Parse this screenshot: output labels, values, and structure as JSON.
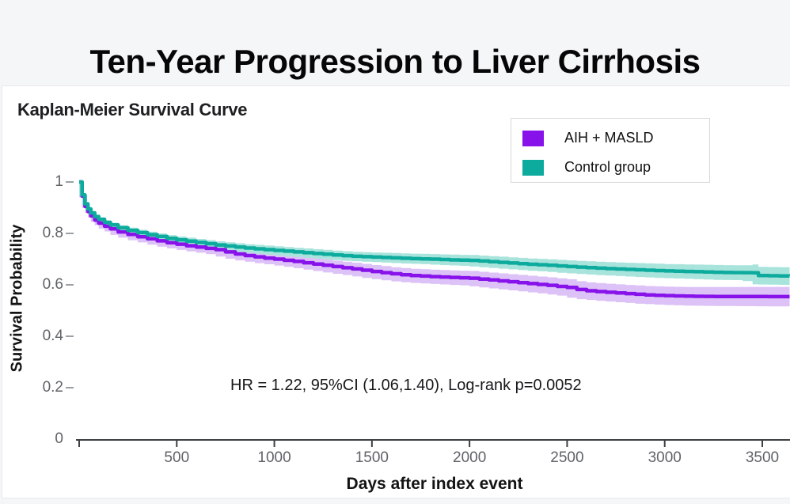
{
  "page_title": "Ten-Year Progression to Liver Cirrhosis",
  "chart_data": {
    "type": "line",
    "variant": "kaplan_meier_step_with_ci_bands",
    "title": "Kaplan-Meier Survival Curve",
    "xlabel": "Days after index event",
    "ylabel": "Survival Probability",
    "annotation": "HR = 1.22, 95%CI (1.06,1.40), Log-rank p=0.0052",
    "xlim": [
      0,
      3640
    ],
    "ylim": [
      0,
      1
    ],
    "grid": false,
    "legend_position": "top-right",
    "x_ticks": [
      0,
      500,
      1000,
      1500,
      2000,
      2500,
      3000,
      3500
    ],
    "x_tick_labels": [
      "",
      "500",
      "1000",
      "1500",
      "2000",
      "2500",
      "3000",
      "3500"
    ],
    "y_ticks": [
      0,
      0.2,
      0.4,
      0.6,
      0.8,
      1
    ],
    "y_tick_labels": [
      "0",
      "0.2",
      "0.4",
      "0.6",
      "0.8",
      "1"
    ],
    "colors": {
      "page_background": "#f5f6f8",
      "card_background": "#ffffff",
      "axis": "#3c4043",
      "y_tick_dash": "#9aa0a6",
      "tick_label": "#5f6368"
    },
    "series": [
      {
        "name": "AIH + MASLD",
        "color": "#8712ea",
        "band_color": "#dcc2f6",
        "points": [
          [
            0,
            1.0
          ],
          [
            15,
            0.945
          ],
          [
            30,
            0.905
          ],
          [
            45,
            0.885
          ],
          [
            60,
            0.868
          ],
          [
            80,
            0.852
          ],
          [
            100,
            0.84
          ],
          [
            130,
            0.828
          ],
          [
            160,
            0.818
          ],
          [
            200,
            0.806
          ],
          [
            250,
            0.796
          ],
          [
            300,
            0.787
          ],
          [
            350,
            0.779
          ],
          [
            400,
            0.771
          ],
          [
            450,
            0.764
          ],
          [
            500,
            0.758
          ],
          [
            550,
            0.752
          ],
          [
            600,
            0.747
          ],
          [
            650,
            0.742
          ],
          [
            700,
            0.737
          ],
          [
            750,
            0.728
          ],
          [
            800,
            0.72
          ],
          [
            850,
            0.714
          ],
          [
            900,
            0.709
          ],
          [
            950,
            0.704
          ],
          [
            1000,
            0.7
          ],
          [
            1100,
            0.691
          ],
          [
            1200,
            0.681
          ],
          [
            1300,
            0.671
          ],
          [
            1400,
            0.662
          ],
          [
            1500,
            0.652
          ],
          [
            1600,
            0.643
          ],
          [
            1700,
            0.636
          ],
          [
            1800,
            0.632
          ],
          [
            1900,
            0.629
          ],
          [
            2000,
            0.626
          ],
          [
            2100,
            0.619
          ],
          [
            2200,
            0.612
          ],
          [
            2300,
            0.605
          ],
          [
            2400,
            0.598
          ],
          [
            2500,
            0.59
          ],
          [
            2550,
            0.582
          ],
          [
            2600,
            0.577
          ],
          [
            2700,
            0.571
          ],
          [
            2800,
            0.566
          ],
          [
            2900,
            0.561
          ],
          [
            3000,
            0.558
          ],
          [
            3100,
            0.556
          ],
          [
            3200,
            0.555
          ],
          [
            3640,
            0.554
          ]
        ],
        "ci_halfwidth": [
          [
            0,
            0.004
          ],
          [
            200,
            0.012
          ],
          [
            500,
            0.016
          ],
          [
            1000,
            0.02
          ],
          [
            1500,
            0.025
          ],
          [
            2000,
            0.028
          ],
          [
            2500,
            0.032
          ],
          [
            3000,
            0.035
          ],
          [
            3300,
            0.037
          ],
          [
            3640,
            0.038
          ]
        ]
      },
      {
        "name": "Control group",
        "color": "#0cab9d",
        "band_color": "#a9e4dc",
        "points": [
          [
            0,
            1.0
          ],
          [
            15,
            0.95
          ],
          [
            30,
            0.915
          ],
          [
            45,
            0.895
          ],
          [
            60,
            0.88
          ],
          [
            80,
            0.866
          ],
          [
            100,
            0.855
          ],
          [
            130,
            0.843
          ],
          [
            160,
            0.833
          ],
          [
            200,
            0.822
          ],
          [
            250,
            0.812
          ],
          [
            300,
            0.803
          ],
          [
            350,
            0.795
          ],
          [
            400,
            0.788
          ],
          [
            450,
            0.781
          ],
          [
            500,
            0.775
          ],
          [
            550,
            0.77
          ],
          [
            600,
            0.765
          ],
          [
            650,
            0.76
          ],
          [
            700,
            0.755
          ],
          [
            750,
            0.751
          ],
          [
            800,
            0.747
          ],
          [
            850,
            0.743
          ],
          [
            900,
            0.74
          ],
          [
            950,
            0.737
          ],
          [
            1000,
            0.734
          ],
          [
            1100,
            0.728
          ],
          [
            1200,
            0.722
          ],
          [
            1300,
            0.716
          ],
          [
            1400,
            0.711
          ],
          [
            1500,
            0.708
          ],
          [
            1600,
            0.705
          ],
          [
            1700,
            0.702
          ],
          [
            1800,
            0.7
          ],
          [
            1900,
            0.697
          ],
          [
            2000,
            0.695
          ],
          [
            2100,
            0.69
          ],
          [
            2200,
            0.685
          ],
          [
            2300,
            0.68
          ],
          [
            2400,
            0.676
          ],
          [
            2500,
            0.671
          ],
          [
            2600,
            0.667
          ],
          [
            2700,
            0.663
          ],
          [
            2800,
            0.66
          ],
          [
            2900,
            0.657
          ],
          [
            3000,
            0.654
          ],
          [
            3100,
            0.652
          ],
          [
            3200,
            0.65
          ],
          [
            3300,
            0.648
          ],
          [
            3450,
            0.647
          ],
          [
            3480,
            0.636
          ],
          [
            3640,
            0.634
          ]
        ],
        "ci_halfwidth": [
          [
            0,
            0.003
          ],
          [
            200,
            0.01
          ],
          [
            500,
            0.013
          ],
          [
            1000,
            0.016
          ],
          [
            1500,
            0.018
          ],
          [
            2000,
            0.021
          ],
          [
            2500,
            0.024
          ],
          [
            3000,
            0.027
          ],
          [
            3400,
            0.029
          ],
          [
            3480,
            0.034
          ],
          [
            3640,
            0.034
          ]
        ]
      }
    ]
  }
}
